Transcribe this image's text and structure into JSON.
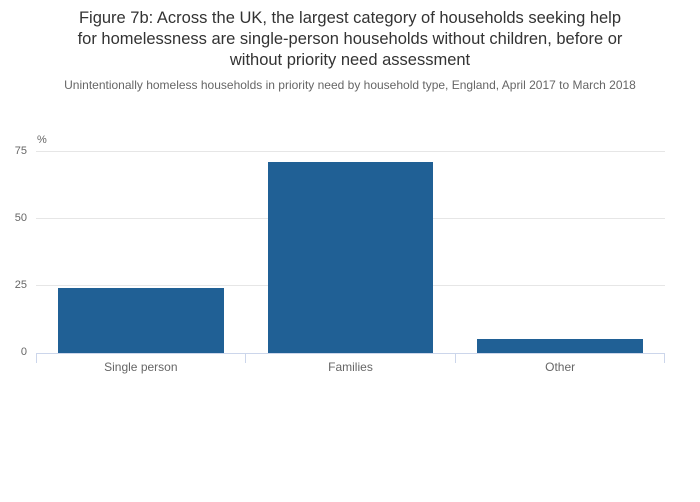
{
  "colors": {
    "bar": "#206095",
    "gridline": "#e6e6e6",
    "axis_line": "#ccd6eb",
    "title_text": "#333333",
    "label_text": "#666666"
  },
  "header": {
    "title_lines": [
      "Figure 7b: Across the UK, the largest category of households seeking help",
      "for homelessness are single-person households without children, before or",
      "without priority need assessment"
    ]
  },
  "chart_data": {
    "type": "bar",
    "title": "Figure 7b: Across the UK, the largest category of households seeking help for homelessness are single-person households without children, before or without priority need assessment",
    "subtitle": "Unintentionally homeless households in priority need by household type, England, April 2017 to March 2018",
    "categories": [
      "Single person",
      "Families",
      "Other"
    ],
    "values": [
      24,
      71,
      5
    ],
    "unit_label": "%",
    "xlabel": "",
    "ylabel": "%",
    "ylim": [
      0,
      75
    ],
    "yticks": [
      0,
      25,
      50,
      75
    ],
    "grid": true,
    "legend": false,
    "legend_position": "none",
    "bar_color": "#206095"
  }
}
